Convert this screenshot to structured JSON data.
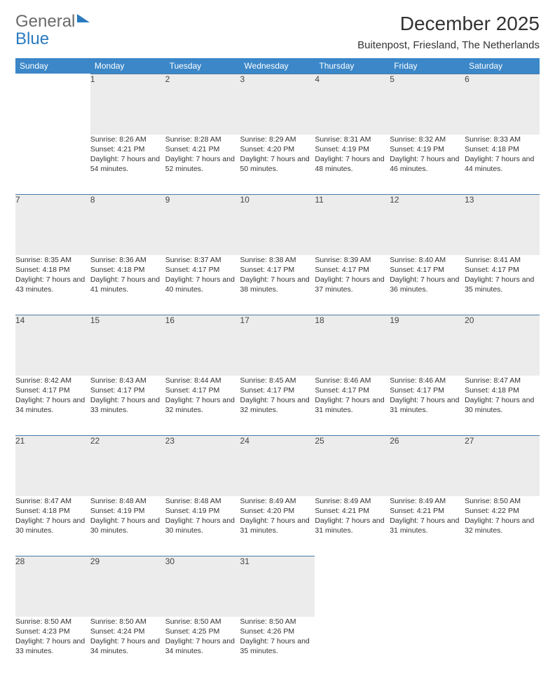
{
  "brand": {
    "word1": "General",
    "word2": "Blue"
  },
  "title": "December 2025",
  "location": "Buitenpost, Friesland, The Netherlands",
  "colors": {
    "header_bg": "#3b87c8",
    "header_fg": "#ffffff",
    "daynum_bg": "#ececec",
    "rule": "#4a7aa5",
    "text": "#333333",
    "brand_gray": "#6a6a6a",
    "brand_blue": "#2a7bbf"
  },
  "weekdays": [
    "Sunday",
    "Monday",
    "Tuesday",
    "Wednesday",
    "Thursday",
    "Friday",
    "Saturday"
  ],
  "weeks": [
    [
      null,
      {
        "n": "1",
        "sunrise": "Sunrise: 8:26 AM",
        "sunset": "Sunset: 4:21 PM",
        "daylight": "Daylight: 7 hours and 54 minutes."
      },
      {
        "n": "2",
        "sunrise": "Sunrise: 8:28 AM",
        "sunset": "Sunset: 4:21 PM",
        "daylight": "Daylight: 7 hours and 52 minutes."
      },
      {
        "n": "3",
        "sunrise": "Sunrise: 8:29 AM",
        "sunset": "Sunset: 4:20 PM",
        "daylight": "Daylight: 7 hours and 50 minutes."
      },
      {
        "n": "4",
        "sunrise": "Sunrise: 8:31 AM",
        "sunset": "Sunset: 4:19 PM",
        "daylight": "Daylight: 7 hours and 48 minutes."
      },
      {
        "n": "5",
        "sunrise": "Sunrise: 8:32 AM",
        "sunset": "Sunset: 4:19 PM",
        "daylight": "Daylight: 7 hours and 46 minutes."
      },
      {
        "n": "6",
        "sunrise": "Sunrise: 8:33 AM",
        "sunset": "Sunset: 4:18 PM",
        "daylight": "Daylight: 7 hours and 44 minutes."
      }
    ],
    [
      {
        "n": "7",
        "sunrise": "Sunrise: 8:35 AM",
        "sunset": "Sunset: 4:18 PM",
        "daylight": "Daylight: 7 hours and 43 minutes."
      },
      {
        "n": "8",
        "sunrise": "Sunrise: 8:36 AM",
        "sunset": "Sunset: 4:18 PM",
        "daylight": "Daylight: 7 hours and 41 minutes."
      },
      {
        "n": "9",
        "sunrise": "Sunrise: 8:37 AM",
        "sunset": "Sunset: 4:17 PM",
        "daylight": "Daylight: 7 hours and 40 minutes."
      },
      {
        "n": "10",
        "sunrise": "Sunrise: 8:38 AM",
        "sunset": "Sunset: 4:17 PM",
        "daylight": "Daylight: 7 hours and 38 minutes."
      },
      {
        "n": "11",
        "sunrise": "Sunrise: 8:39 AM",
        "sunset": "Sunset: 4:17 PM",
        "daylight": "Daylight: 7 hours and 37 minutes."
      },
      {
        "n": "12",
        "sunrise": "Sunrise: 8:40 AM",
        "sunset": "Sunset: 4:17 PM",
        "daylight": "Daylight: 7 hours and 36 minutes."
      },
      {
        "n": "13",
        "sunrise": "Sunrise: 8:41 AM",
        "sunset": "Sunset: 4:17 PM",
        "daylight": "Daylight: 7 hours and 35 minutes."
      }
    ],
    [
      {
        "n": "14",
        "sunrise": "Sunrise: 8:42 AM",
        "sunset": "Sunset: 4:17 PM",
        "daylight": "Daylight: 7 hours and 34 minutes."
      },
      {
        "n": "15",
        "sunrise": "Sunrise: 8:43 AM",
        "sunset": "Sunset: 4:17 PM",
        "daylight": "Daylight: 7 hours and 33 minutes."
      },
      {
        "n": "16",
        "sunrise": "Sunrise: 8:44 AM",
        "sunset": "Sunset: 4:17 PM",
        "daylight": "Daylight: 7 hours and 32 minutes."
      },
      {
        "n": "17",
        "sunrise": "Sunrise: 8:45 AM",
        "sunset": "Sunset: 4:17 PM",
        "daylight": "Daylight: 7 hours and 32 minutes."
      },
      {
        "n": "18",
        "sunrise": "Sunrise: 8:46 AM",
        "sunset": "Sunset: 4:17 PM",
        "daylight": "Daylight: 7 hours and 31 minutes."
      },
      {
        "n": "19",
        "sunrise": "Sunrise: 8:46 AM",
        "sunset": "Sunset: 4:17 PM",
        "daylight": "Daylight: 7 hours and 31 minutes."
      },
      {
        "n": "20",
        "sunrise": "Sunrise: 8:47 AM",
        "sunset": "Sunset: 4:18 PM",
        "daylight": "Daylight: 7 hours and 30 minutes."
      }
    ],
    [
      {
        "n": "21",
        "sunrise": "Sunrise: 8:47 AM",
        "sunset": "Sunset: 4:18 PM",
        "daylight": "Daylight: 7 hours and 30 minutes."
      },
      {
        "n": "22",
        "sunrise": "Sunrise: 8:48 AM",
        "sunset": "Sunset: 4:19 PM",
        "daylight": "Daylight: 7 hours and 30 minutes."
      },
      {
        "n": "23",
        "sunrise": "Sunrise: 8:48 AM",
        "sunset": "Sunset: 4:19 PM",
        "daylight": "Daylight: 7 hours and 30 minutes."
      },
      {
        "n": "24",
        "sunrise": "Sunrise: 8:49 AM",
        "sunset": "Sunset: 4:20 PM",
        "daylight": "Daylight: 7 hours and 31 minutes."
      },
      {
        "n": "25",
        "sunrise": "Sunrise: 8:49 AM",
        "sunset": "Sunset: 4:21 PM",
        "daylight": "Daylight: 7 hours and 31 minutes."
      },
      {
        "n": "26",
        "sunrise": "Sunrise: 8:49 AM",
        "sunset": "Sunset: 4:21 PM",
        "daylight": "Daylight: 7 hours and 31 minutes."
      },
      {
        "n": "27",
        "sunrise": "Sunrise: 8:50 AM",
        "sunset": "Sunset: 4:22 PM",
        "daylight": "Daylight: 7 hours and 32 minutes."
      }
    ],
    [
      {
        "n": "28",
        "sunrise": "Sunrise: 8:50 AM",
        "sunset": "Sunset: 4:23 PM",
        "daylight": "Daylight: 7 hours and 33 minutes."
      },
      {
        "n": "29",
        "sunrise": "Sunrise: 8:50 AM",
        "sunset": "Sunset: 4:24 PM",
        "daylight": "Daylight: 7 hours and 34 minutes."
      },
      {
        "n": "30",
        "sunrise": "Sunrise: 8:50 AM",
        "sunset": "Sunset: 4:25 PM",
        "daylight": "Daylight: 7 hours and 34 minutes."
      },
      {
        "n": "31",
        "sunrise": "Sunrise: 8:50 AM",
        "sunset": "Sunset: 4:26 PM",
        "daylight": "Daylight: 7 hours and 35 minutes."
      },
      null,
      null,
      null
    ]
  ]
}
